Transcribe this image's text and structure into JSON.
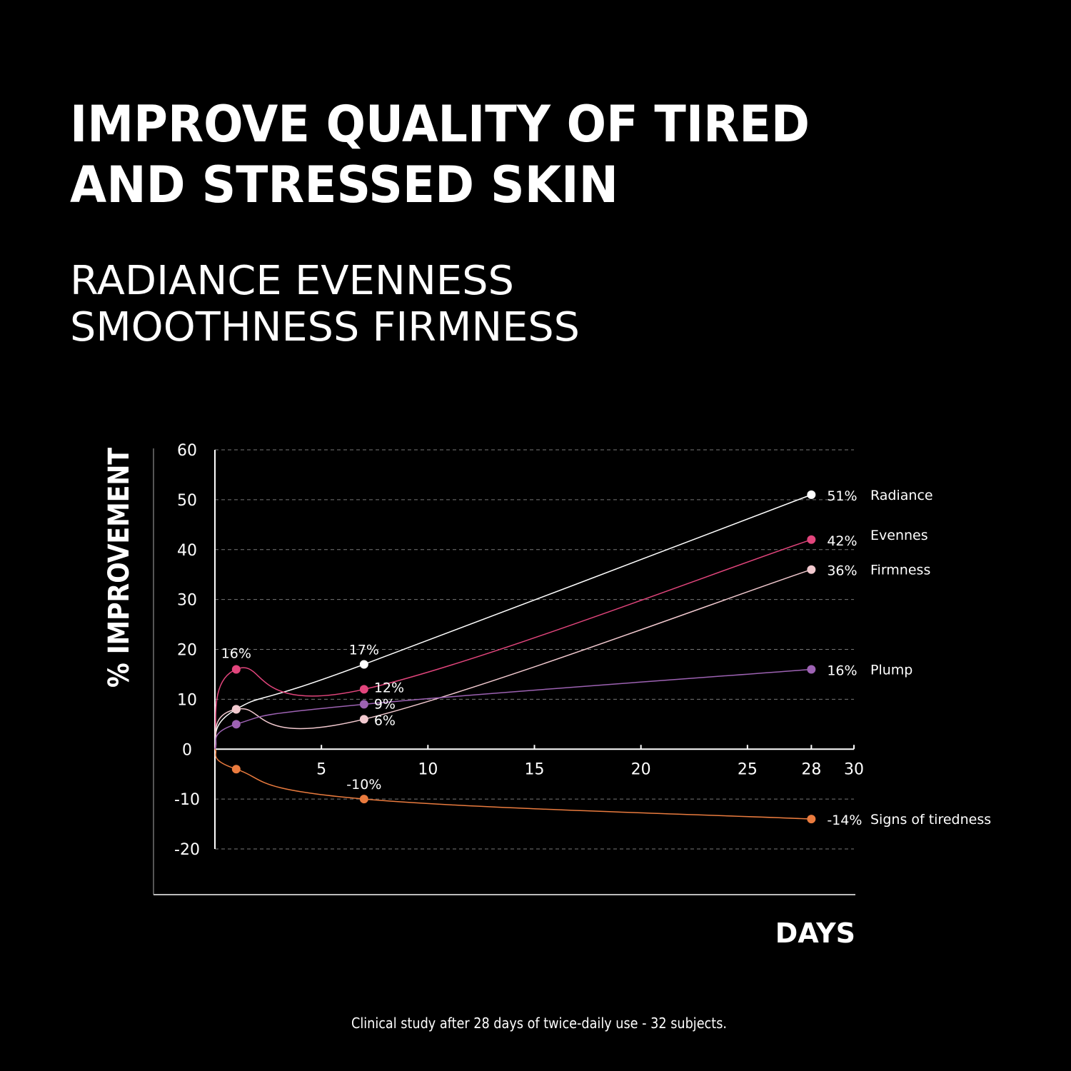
{
  "chart_data": {
    "type": "line",
    "title": [
      "IMPROVE QUALITY OF TIRED",
      "AND STRESSED SKIN"
    ],
    "subtitle": [
      "RADIANCE EVENNESS",
      "SMOOTHNESS FIRMNESS"
    ],
    "y_label": "% IMPROVEMENT",
    "x_label": "DAYS",
    "footnote": "Clinical study after 28 days of twice-daily use - 32 subjects.",
    "x": [
      0,
      1,
      7,
      28
    ],
    "series": [
      {
        "name": "Radiance",
        "color": "#ffffff",
        "values": [
          0,
          8,
          17,
          51
        ],
        "value_labels": [
          null,
          null,
          "17%",
          "51%"
        ]
      },
      {
        "name": "Evennes",
        "color": "#e2457c",
        "values": [
          0,
          16,
          12,
          42
        ],
        "value_labels": [
          null,
          "16%",
          "12%",
          "42%"
        ]
      },
      {
        "name": "Firmness",
        "color": "#f2c9cf",
        "values": [
          0,
          8,
          6,
          36
        ],
        "value_labels": [
          null,
          null,
          "6%",
          "36%"
        ]
      },
      {
        "name": "Plump",
        "color": "#9d62b3",
        "values": [
          0,
          5,
          9,
          16
        ],
        "value_labels": [
          null,
          null,
          "9%",
          "16%"
        ]
      },
      {
        "name": "Signs of tiredness",
        "color": "#ea7b3e",
        "values": [
          0,
          -4,
          -10,
          -14
        ],
        "value_labels": [
          null,
          null,
          "-10%",
          "-14%"
        ]
      }
    ],
    "xlim": [
      0,
      30
    ],
    "xticks": [
      5,
      10,
      15,
      20,
      25,
      28,
      30
    ],
    "ylim": [
      -20,
      60
    ],
    "yticks": [
      -20,
      -10,
      0,
      10,
      20,
      30,
      40,
      50,
      60
    ],
    "grid": true
  }
}
